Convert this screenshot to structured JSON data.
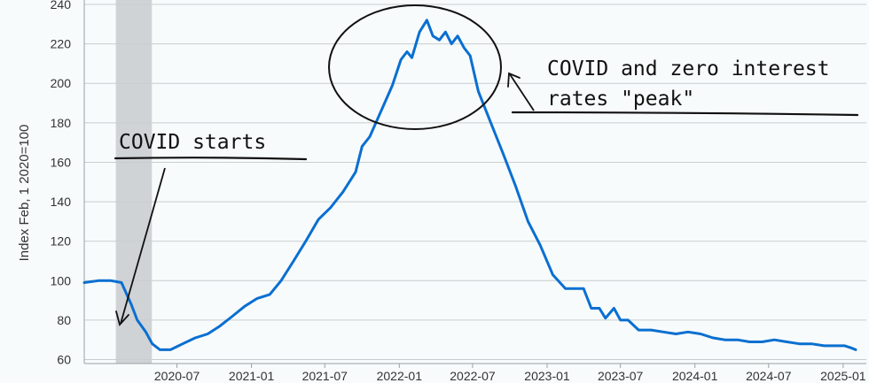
{
  "chart_data": {
    "type": "line",
    "title": "",
    "xlabel": "",
    "ylabel": "Index Feb, 1 2020=100",
    "xlim": [
      "2019-11-15",
      "2025-02-01"
    ],
    "ylim": [
      58,
      240
    ],
    "y_ticks": [
      60,
      80,
      100,
      120,
      140,
      160,
      180,
      200,
      220,
      240
    ],
    "y_tick_labels": [
      "60",
      "80",
      "100",
      "120",
      "140",
      "160",
      "180",
      "200",
      "220",
      "240"
    ],
    "x_ticks": [
      "2020-07-01",
      "2021-01-01",
      "2021-07-01",
      "2022-01-01",
      "2022-07-01",
      "2023-01-01",
      "2023-07-01",
      "2024-01-01",
      "2024-07-01",
      "2025-01-01"
    ],
    "x_tick_labels": [
      "2020-07",
      "2021-01",
      "2021-07",
      "2022-01",
      "2022-07",
      "2023-01",
      "2023-07",
      "2024-01",
      "2024-07",
      "2025-01"
    ],
    "grid": "horizontal",
    "recession_shading": [
      "2020-02-01",
      "2020-04-30"
    ],
    "line_color": "#0a6fd1",
    "shade_color": "#d0d3d6",
    "series": [
      {
        "x": [
          "2019-11-15",
          "2019-12-20",
          "2020-01-20",
          "2020-02-15",
          "2020-03-10",
          "2020-03-25",
          "2020-04-15",
          "2020-05-01",
          "2020-05-20",
          "2020-06-15",
          "2020-07-15",
          "2020-08-15",
          "2020-09-15",
          "2020-10-15",
          "2020-11-15",
          "2020-12-15",
          "2021-01-15",
          "2021-02-15",
          "2021-03-15",
          "2021-04-15",
          "2021-05-15",
          "2021-06-15",
          "2021-07-15",
          "2021-08-15",
          "2021-09-15",
          "2021-10-01",
          "2021-10-20",
          "2021-11-15",
          "2021-12-15",
          "2022-01-05",
          "2022-01-20",
          "2022-02-01",
          "2022-02-20",
          "2022-03-10",
          "2022-03-25",
          "2022-04-10",
          "2022-04-25",
          "2022-05-10",
          "2022-05-25",
          "2022-06-10",
          "2022-06-25",
          "2022-07-15",
          "2022-08-15",
          "2022-09-15",
          "2022-10-15",
          "2022-11-15",
          "2022-12-15",
          "2023-01-15",
          "2023-02-15",
          "2023-03-15",
          "2023-04-01",
          "2023-04-20",
          "2023-05-10",
          "2023-05-25",
          "2023-06-15",
          "2023-07-01",
          "2023-07-20",
          "2023-08-15",
          "2023-09-15",
          "2023-10-15",
          "2023-11-15",
          "2023-12-15",
          "2024-01-15",
          "2024-02-15",
          "2024-03-15",
          "2024-04-15",
          "2024-05-15",
          "2024-06-15",
          "2024-07-15",
          "2024-08-15",
          "2024-09-15",
          "2024-10-15",
          "2024-11-15",
          "2024-12-15",
          "2025-01-05",
          "2025-01-20",
          "2025-02-01"
        ],
        "y": [
          99,
          100,
          100,
          99,
          88,
          80,
          74,
          68,
          65,
          65,
          68,
          71,
          73,
          77,
          82,
          87,
          91,
          93,
          100,
          110,
          120,
          131,
          137,
          145,
          155,
          168,
          173,
          185,
          199,
          212,
          216,
          213,
          226,
          232,
          224,
          222,
          226,
          220,
          224,
          218,
          214,
          196,
          180,
          164,
          148,
          130,
          118,
          103,
          96,
          96,
          96,
          86,
          86,
          81,
          86,
          80,
          80,
          75,
          75,
          74,
          73,
          74,
          73,
          71,
          70,
          70,
          69,
          69,
          70,
          69,
          68,
          68,
          67,
          67,
          67,
          66,
          65
        ]
      }
    ],
    "annotations": [
      {
        "text": "COVID starts",
        "points_to": [
          "2020-04-10",
          80
        ]
      },
      {
        "text": "COVID and zero interest",
        "text2": "rates \"peak\"",
        "points_to": [
          "2022-04-01",
          222
        ]
      }
    ]
  }
}
